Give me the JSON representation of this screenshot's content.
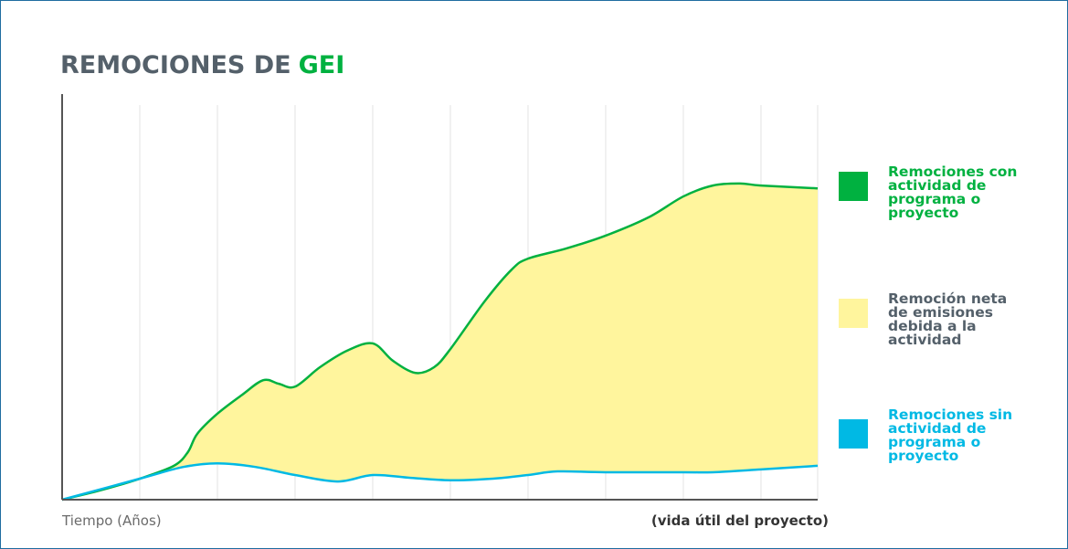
{
  "chart_data": {
    "type": "area-between",
    "title": "REMOCIONES DE",
    "title_highlight": "GEI",
    "title_color": "#54606a",
    "title_highlight_color": "#00b140",
    "x_label": "Tiempo (Años)",
    "x_label_right": "(vida útil del proyecto)",
    "xlim": [
      0,
      9.73
    ],
    "ylim": [
      0,
      100
    ],
    "xticks": [
      1,
      2,
      3,
      4,
      5,
      6,
      7,
      8,
      9
    ],
    "grid": true,
    "legend": "right",
    "series": [
      {
        "name": "Remociones con actividad de programa o proyecto",
        "color": "#00b140",
        "x": [
          0,
          0.49,
          1,
          1.44,
          1.62,
          1.74,
          2,
          2.32,
          2.59,
          2.79,
          3,
          3.32,
          3.67,
          4,
          4.26,
          4.55,
          4.79,
          5,
          5.44,
          5.79,
          6,
          6.49,
          7,
          7.55,
          8,
          8.38,
          8.73,
          9,
          9.73
        ],
        "values": [
          0,
          2.3,
          5.2,
          8.4,
          11.8,
          16.3,
          21.3,
          26,
          29.6,
          28.7,
          28,
          32.8,
          36.9,
          38.7,
          34.4,
          31.4,
          32.8,
          37.3,
          49.1,
          57,
          59.7,
          62.2,
          65.4,
          69.9,
          75.1,
          77.8,
          78.3,
          77.8,
          77.1
        ]
      },
      {
        "name": "Remociones sin actividad de programa o proyecto",
        "color": "#00b9e4",
        "x": [
          0,
          1,
          1.56,
          2,
          2.49,
          3,
          3.55,
          4,
          4.49,
          5,
          5.55,
          6,
          6.38,
          7,
          8,
          8.38,
          9,
          9.73
        ],
        "values": [
          0,
          5.2,
          8.1,
          9,
          8.1,
          6.1,
          4.5,
          6.1,
          5.4,
          4.8,
          5.2,
          6.1,
          7,
          6.8,
          6.8,
          6.8,
          7.5,
          8.4
        ]
      }
    ],
    "band": {
      "name": "Remoción neta de emisiones debida a la actividad",
      "color": "#fff59d",
      "text_color": "#54606a"
    }
  }
}
